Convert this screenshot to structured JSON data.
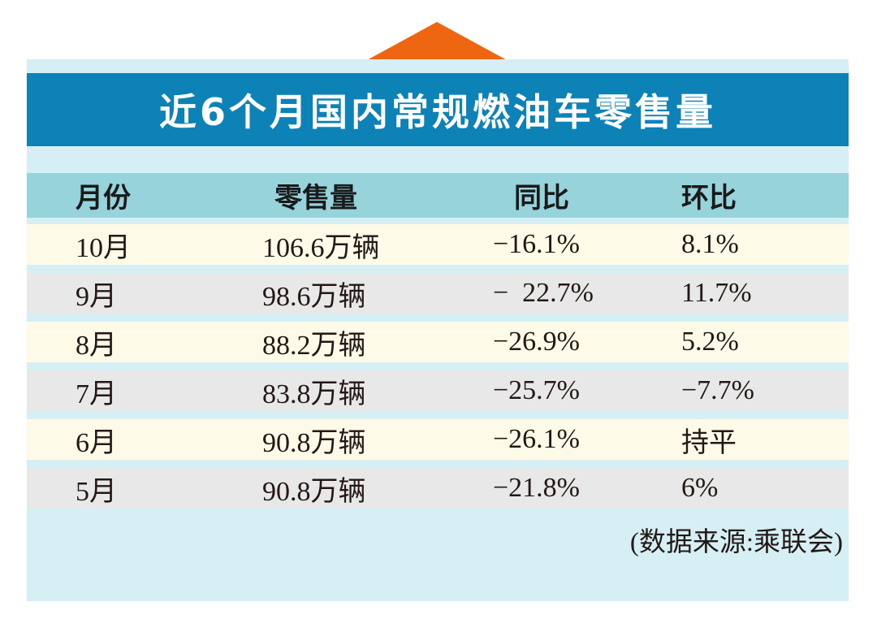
{
  "title": "近6个月国内常规燃油车零售量",
  "colors": {
    "title_bg": "#0c82b7",
    "accent": "#ee6611",
    "header_bg": "#97d3da",
    "panel_bg": "#d6eff4"
  },
  "chart_data": {
    "type": "table",
    "title": "近6个月国内常规燃油车零售量",
    "columns": [
      "月份",
      "零售量",
      "同比",
      "环比"
    ],
    "rows": [
      [
        "10月",
        "106.6万辆",
        "−16.1%",
        "8.1%"
      ],
      [
        "9月",
        "98.6万辆",
        "−  22.7%",
        "11.7%"
      ],
      [
        "8月",
        "88.2万辆",
        "−26.9%",
        "5.2%"
      ],
      [
        "7月",
        "83.8万辆",
        "−25.7%",
        "−7.7%"
      ],
      [
        "6月",
        "90.8万辆",
        "−26.1%",
        "持平"
      ],
      [
        "5月",
        "90.8万辆",
        "−21.8%",
        "6%"
      ]
    ],
    "source": "(数据来源:乘联会)"
  }
}
